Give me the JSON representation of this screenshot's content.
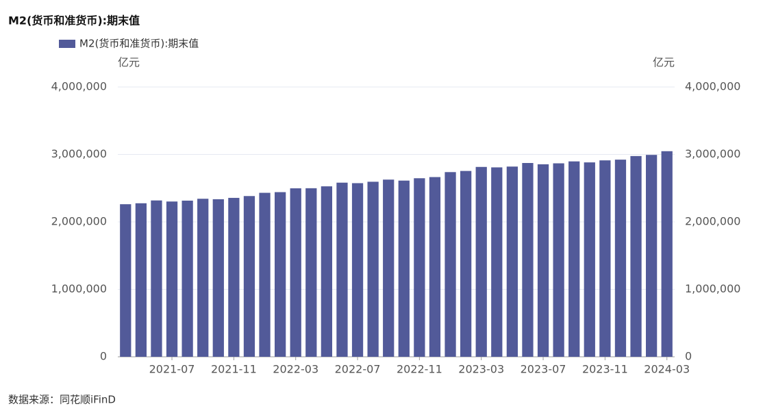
{
  "chart_data": {
    "type": "bar",
    "title": "M2(货币和准货币):期末值",
    "source": "数据来源：同花顺iFinD",
    "y_unit": "亿元",
    "y2_unit": "亿元",
    "categories": [
      null,
      null,
      null,
      "2021-07",
      null,
      null,
      null,
      "2021-11",
      null,
      null,
      null,
      "2022-03",
      null,
      null,
      null,
      "2022-07",
      null,
      null,
      null,
      "2022-11",
      null,
      null,
      null,
      "2023-03",
      null,
      null,
      null,
      "2023-07",
      null,
      null,
      null,
      "2023-11",
      null,
      null,
      null,
      "2024-03"
    ],
    "series": [
      {
        "name": "M2(货币和准货币):期末值",
        "color": "#525a99",
        "values": [
          2262000,
          2276000,
          2317800,
          2302000,
          2315000,
          2342800,
          2336000,
          2356000,
          2382900,
          2431000,
          2441000,
          2497700,
          2499000,
          2527000,
          2581500,
          2574000,
          2595000,
          2626700,
          2612000,
          2647000,
          2664300,
          2738000,
          2755000,
          2814600,
          2808000,
          2820000,
          2873000,
          2854000,
          2868000,
          2896700,
          2882000,
          2912000,
          2922700,
          2976000,
          2993000,
          3047900
        ]
      }
    ],
    "ylim": [
      0,
      4000000
    ],
    "yticks": [
      0,
      {
        "value": 1000000,
        "label": "1,000,000"
      },
      {
        "value": 2000000,
        "label": "2,000,000"
      },
      {
        "value": 3000000,
        "label": "3,000,000"
      },
      {
        "value": 4000000,
        "label": "4,000,000"
      }
    ],
    "y2lim": [
      0,
      4000000
    ],
    "y2ticks": [
      0,
      {
        "value": 1000000,
        "label": "1,000,000"
      },
      {
        "value": 2000000,
        "label": "2,000,000"
      },
      {
        "value": 3000000,
        "label": "3,000,000"
      },
      {
        "value": 4000000,
        "label": "4,000,000"
      }
    ],
    "grid": true
  }
}
